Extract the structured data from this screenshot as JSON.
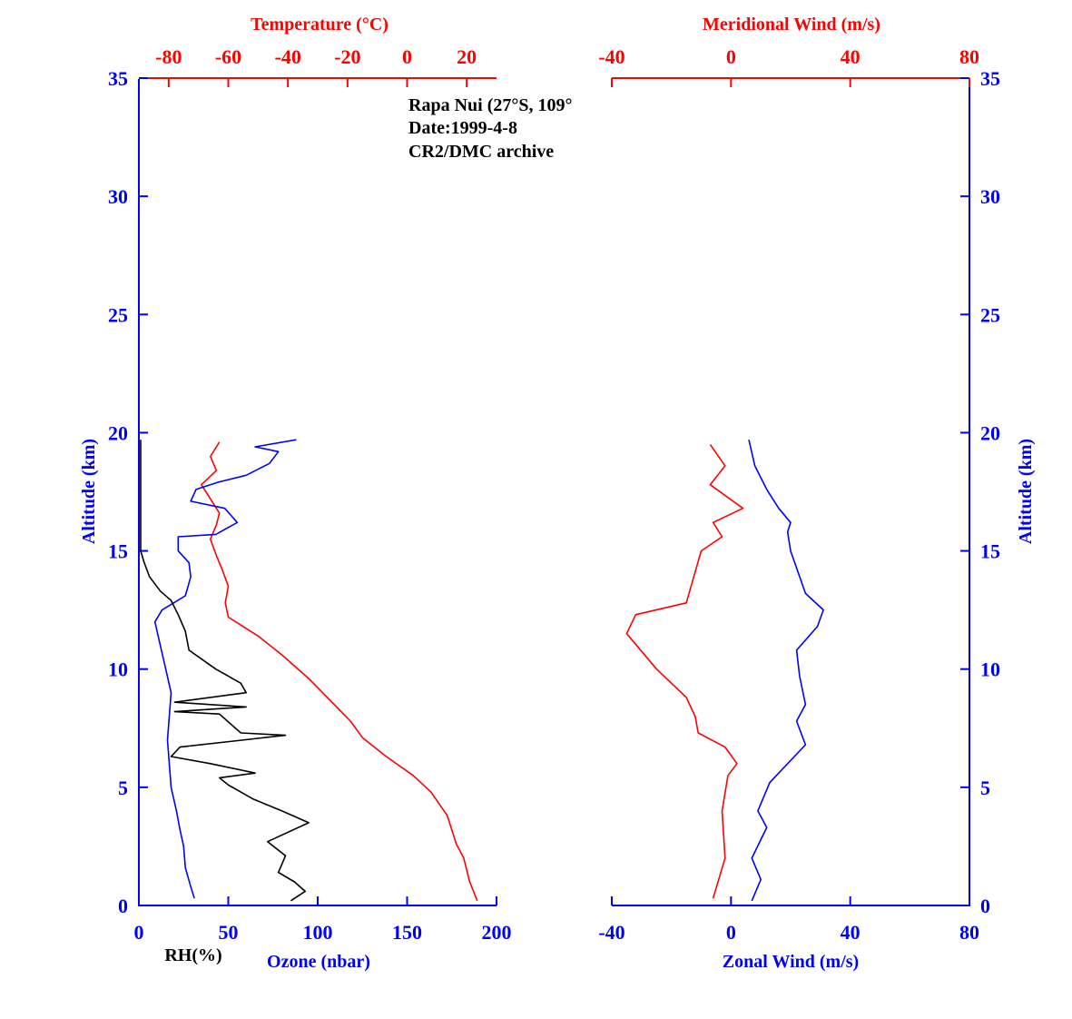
{
  "colors": {
    "blue": "#0000ff",
    "red": "#ff0000",
    "black": "#000000"
  },
  "annotations": [
    "Rapa Nui (27°S, 109°",
    "Date:1999-4-8",
    "CR2/DMC archive"
  ],
  "chart_data": [
    {
      "type": "line",
      "panel": "left",
      "altitude_axis": {
        "label": "Altitude (km)",
        "range": [
          0,
          35
        ],
        "ticks": [
          0,
          5,
          10,
          15,
          20,
          25,
          30,
          35
        ]
      },
      "bottom_axis": {
        "label": "Ozone (nbar)",
        "range": [
          0,
          200
        ],
        "ticks": [
          0,
          50,
          100,
          150,
          200
        ]
      },
      "bottom_axis_secondary_label": "RH(%)",
      "top_axis": {
        "label": "Temperature (°C)",
        "range": [
          -90,
          30
        ],
        "ticks": [
          -80,
          -60,
          -40,
          -20,
          0,
          20
        ]
      },
      "series": [
        {
          "name": "Temperature",
          "color": "#ff0000",
          "axis": "top",
          "points": [
            [
              23.5,
              0.2
            ],
            [
              21,
              1
            ],
            [
              19,
              2
            ],
            [
              16.5,
              2.6
            ],
            [
              13.5,
              3.8
            ],
            [
              8,
              4.8
            ],
            [
              2,
              5.5
            ],
            [
              -7,
              6.3
            ],
            [
              -15,
              7.1
            ],
            [
              -19,
              7.8
            ],
            [
              -26,
              8.7
            ],
            [
              -33,
              9.6
            ],
            [
              -42,
              10.6
            ],
            [
              -50,
              11.4
            ],
            [
              -60,
              12.2
            ],
            [
              -61,
              12.8
            ],
            [
              -60,
              13.5
            ],
            [
              -62,
              14.2
            ],
            [
              -64,
              14.8
            ],
            [
              -66,
              15.5
            ],
            [
              -64,
              16.1
            ],
            [
              -63,
              16.6
            ],
            [
              -66,
              17.2
            ],
            [
              -69,
              17.8
            ],
            [
              -64,
              18.4
            ],
            [
              -66,
              19
            ],
            [
              -63,
              19.6
            ]
          ]
        },
        {
          "name": "Ozone",
          "color": "#0000ff",
          "axis": "bottom",
          "points": [
            [
              31,
              0.3
            ],
            [
              29,
              0.8
            ],
            [
              26,
              1.6
            ],
            [
              25,
              2.5
            ],
            [
              23,
              3.2
            ],
            [
              21,
              4
            ],
            [
              18,
              5
            ],
            [
              17,
              6
            ],
            [
              16,
              7
            ],
            [
              17,
              8
            ],
            [
              18,
              9
            ],
            [
              15,
              10
            ],
            [
              12,
              11
            ],
            [
              9,
              12
            ],
            [
              13,
              12.5
            ],
            [
              26,
              13.1
            ],
            [
              29,
              13.9
            ],
            [
              28,
              14.5
            ],
            [
              22,
              15
            ],
            [
              22,
              15.6
            ],
            [
              43,
              15.7
            ],
            [
              55,
              16.2
            ],
            [
              48,
              16.8
            ],
            [
              29,
              17.1
            ],
            [
              32,
              17.6
            ],
            [
              44,
              17.9
            ],
            [
              60,
              18.2
            ],
            [
              73,
              18.7
            ],
            [
              78,
              19.2
            ],
            [
              65,
              19.4
            ],
            [
              88,
              19.7
            ]
          ]
        },
        {
          "name": "RH",
          "color": "#000000",
          "axis": "bottom",
          "points": [
            [
              85,
              0.2
            ],
            [
              93,
              0.6
            ],
            [
              87,
              1
            ],
            [
              78,
              1.4
            ],
            [
              82,
              2.1
            ],
            [
              72,
              2.7
            ],
            [
              95,
              3.5
            ],
            [
              80,
              4
            ],
            [
              64,
              4.5
            ],
            [
              50,
              5.1
            ],
            [
              45,
              5.4
            ],
            [
              65,
              5.6
            ],
            [
              40,
              6
            ],
            [
              18,
              6.3
            ],
            [
              23,
              6.7
            ],
            [
              82,
              7.2
            ],
            [
              57,
              7.3
            ],
            [
              45,
              8.1
            ],
            [
              20,
              8.2
            ],
            [
              60,
              8.4
            ],
            [
              20,
              8.6
            ],
            [
              60,
              9
            ],
            [
              57,
              9.4
            ],
            [
              43,
              10
            ],
            [
              28,
              10.8
            ],
            [
              26,
              11.6
            ],
            [
              22,
              12.3
            ],
            [
              18,
              12.9
            ],
            [
              12,
              13.3
            ],
            [
              6,
              13.9
            ],
            [
              3,
              14.5
            ],
            [
              1,
              15
            ],
            [
              1,
              19.7
            ]
          ]
        }
      ]
    },
    {
      "type": "line",
      "panel": "right",
      "altitude_axis": {
        "label": "Altitude (km)",
        "range": [
          0,
          35
        ],
        "ticks": [
          0,
          5,
          10,
          15,
          20,
          25,
          30,
          35
        ]
      },
      "bottom_axis": {
        "label": "Zonal Wind (m/s)",
        "range": [
          -40,
          80
        ],
        "ticks": [
          -40,
          0,
          40,
          80
        ]
      },
      "top_axis": {
        "label": "Meridional Wind (m/s)",
        "range": [
          -40,
          80
        ],
        "ticks": [
          -40,
          0,
          40,
          80
        ]
      },
      "series": [
        {
          "name": "Zonal Wind",
          "color": "#0000ff",
          "axis": "bottom",
          "points": [
            [
              7,
              0.2
            ],
            [
              10,
              1.1
            ],
            [
              7,
              2
            ],
            [
              12,
              3.3
            ],
            [
              9,
              4
            ],
            [
              13,
              5.2
            ],
            [
              25,
              6.8
            ],
            [
              22,
              7.8
            ],
            [
              25,
              8.5
            ],
            [
              23,
              9.7
            ],
            [
              22,
              10.8
            ],
            [
              29,
              11.8
            ],
            [
              31,
              12.5
            ],
            [
              25,
              13.2
            ],
            [
              20,
              15
            ],
            [
              19,
              15.8
            ],
            [
              20,
              16.2
            ],
            [
              16,
              16.8
            ],
            [
              12,
              17.6
            ],
            [
              8,
              18.6
            ],
            [
              6,
              19.7
            ]
          ]
        },
        {
          "name": "Meridional Wind",
          "color": "#ff0000",
          "axis": "top",
          "points": [
            [
              -6,
              0.3
            ],
            [
              -2,
              2
            ],
            [
              -3,
              4
            ],
            [
              -1,
              5.5
            ],
            [
              2,
              6
            ],
            [
              -2,
              6.7
            ],
            [
              -11,
              7.3
            ],
            [
              -12,
              8
            ],
            [
              -15,
              8.8
            ],
            [
              -25,
              10
            ],
            [
              -35,
              11.5
            ],
            [
              -32,
              12.3
            ],
            [
              -15,
              12.8
            ],
            [
              -10,
              15
            ],
            [
              -3,
              15.6
            ],
            [
              -6,
              16.2
            ],
            [
              4,
              16.8
            ],
            [
              -7,
              17.8
            ],
            [
              -2,
              18.6
            ],
            [
              -7,
              19.5
            ]
          ]
        }
      ]
    }
  ]
}
